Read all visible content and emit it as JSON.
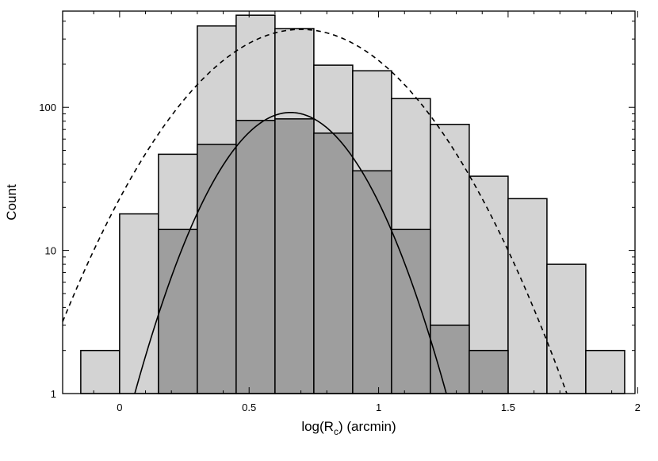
{
  "chart_data": {
    "type": "bar",
    "title": "",
    "xlabel": "log(R",
    "xlabel_sub": "c",
    "xlabel_suffix": ") (arcmin)",
    "ylabel": "Count",
    "yscale": "log",
    "xlim": [
      -0.22,
      1.99
    ],
    "ylim": [
      1,
      470
    ],
    "grid": false,
    "x_ticks": [
      {
        "value": 0,
        "label": "0"
      },
      {
        "value": 0.5,
        "label": "0.5"
      },
      {
        "value": 1,
        "label": "1"
      },
      {
        "value": 1.5,
        "label": "1.5"
      },
      {
        "value": 2,
        "label": "2"
      }
    ],
    "y_ticks": [
      {
        "value": 1,
        "label": "1"
      },
      {
        "value": 10,
        "label": "10"
      },
      {
        "value": 100,
        "label": "100"
      }
    ],
    "bin_edges": [
      -0.15,
      0.0,
      0.15,
      0.3,
      0.45,
      0.6,
      0.75,
      0.9,
      1.05,
      1.2,
      1.35,
      1.5,
      1.65,
      1.8,
      1.95
    ],
    "series": [
      {
        "kind": "histogram",
        "color": "#d3d3d3",
        "values": [
          2,
          18,
          47,
          370,
          440,
          355,
          197,
          180,
          115,
          76,
          33,
          23,
          8,
          2
        ]
      },
      {
        "kind": "histogram",
        "color": "#9e9e9e",
        "values": [
          0,
          0,
          14,
          55,
          81,
          83,
          66,
          36,
          14,
          3,
          2,
          0,
          0,
          0
        ]
      },
      {
        "kind": "curve",
        "style": "dashed",
        "color": "#000000",
        "gaussian": {
          "peak": 350,
          "mu": 0.7,
          "sigma": 0.3
        }
      },
      {
        "kind": "curve",
        "style": "solid",
        "color": "#000000",
        "gaussian": {
          "peak": 92,
          "mu": 0.66,
          "sigma": 0.2
        }
      }
    ]
  }
}
